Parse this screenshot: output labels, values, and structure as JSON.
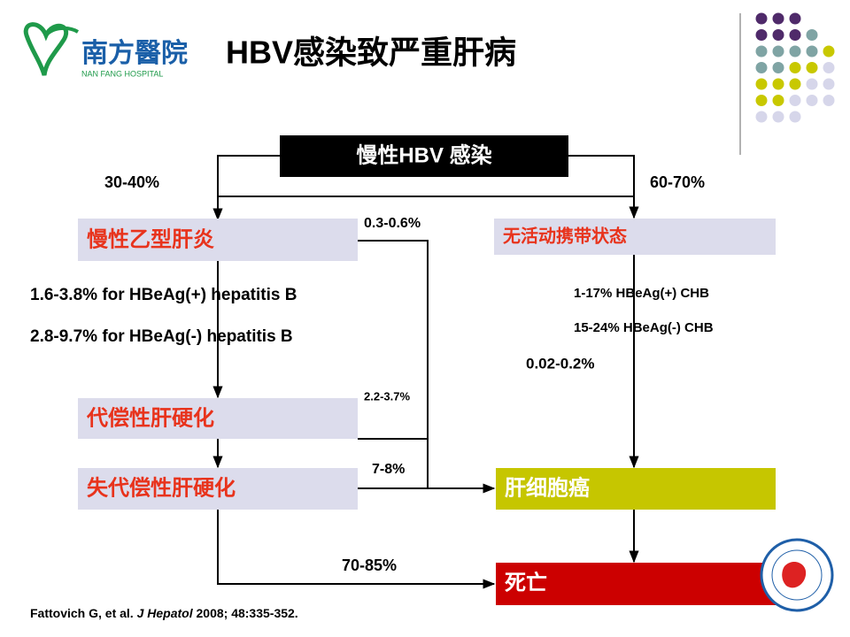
{
  "header": {
    "logo": {
      "name": "南方醫院",
      "name_en": "NAN FANG HOSPITAL"
    },
    "title": "HBV感染致严重肝病"
  },
  "nodes": [
    "慢性HBV 感染",
    "慢性乙型肝炎",
    "无活动携带状态",
    "代偿性肝硬化",
    "失代偿性肝硬化",
    "肝细胞癌",
    "死亡"
  ],
  "edge_labels": [
    "30-40%",
    "60-70%",
    "0.3-0.6%",
    "1.6-3.8% for HBeAg(+) hepatitis B",
    "2.8-9.7% for HBeAg(-) hepatitis B",
    "1-17% HBeAg(+) CHB",
    "15-24% HBeAg(-) CHB",
    "0.02-0.2%",
    "2.2-3.7%",
    "7-8%",
    "70-85%"
  ],
  "citation": {
    "authors": "Fattovich G, et al.",
    "journal": "J Hepatol",
    "details": "2008; 48:335-352."
  }
}
